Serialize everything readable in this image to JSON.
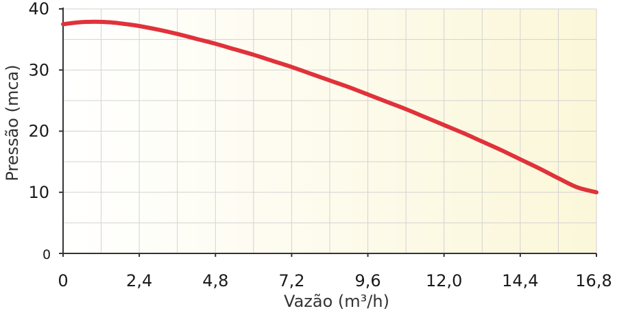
{
  "chart_data": {
    "type": "line",
    "xlabel": "Vazão (m³/h)",
    "ylabel": "Pressão (mca)",
    "xlim": [
      0,
      16.8
    ],
    "ylim": [
      0,
      40
    ],
    "x_ticks": [
      0,
      2.4,
      4.8,
      7.2,
      9.6,
      12.0,
      14.4,
      16.8
    ],
    "x_tick_labels": [
      "0",
      "2,4",
      "4,8",
      "7,2",
      "9,6",
      "12,0",
      "14,4",
      "16,8"
    ],
    "y_ticks": [
      0,
      10,
      20,
      30,
      40
    ],
    "y_tick_labels": [
      "0",
      "10",
      "20",
      "30",
      "40"
    ],
    "grid": true,
    "background_gradient": [
      "#ffffff",
      "#fbf7d9"
    ],
    "series": [
      {
        "color": "#e0323a",
        "x": [
          0,
          0.5,
          1.0,
          1.5,
          2.0,
          2.4,
          3.0,
          3.6,
          4.2,
          4.8,
          5.4,
          6.0,
          6.6,
          7.2,
          7.8,
          8.4,
          9.0,
          9.6,
          10.2,
          10.8,
          11.4,
          12.0,
          12.6,
          13.2,
          13.8,
          14.4,
          15.0,
          15.6,
          16.2,
          16.8
        ],
        "y": [
          37.5,
          37.8,
          37.9,
          37.8,
          37.5,
          37.2,
          36.6,
          35.9,
          35.1,
          34.3,
          33.4,
          32.5,
          31.5,
          30.5,
          29.4,
          28.3,
          27.2,
          26.0,
          24.8,
          23.6,
          22.3,
          21.0,
          19.7,
          18.3,
          16.9,
          15.4,
          13.9,
          12.3,
          10.8,
          10.0
        ]
      }
    ]
  }
}
